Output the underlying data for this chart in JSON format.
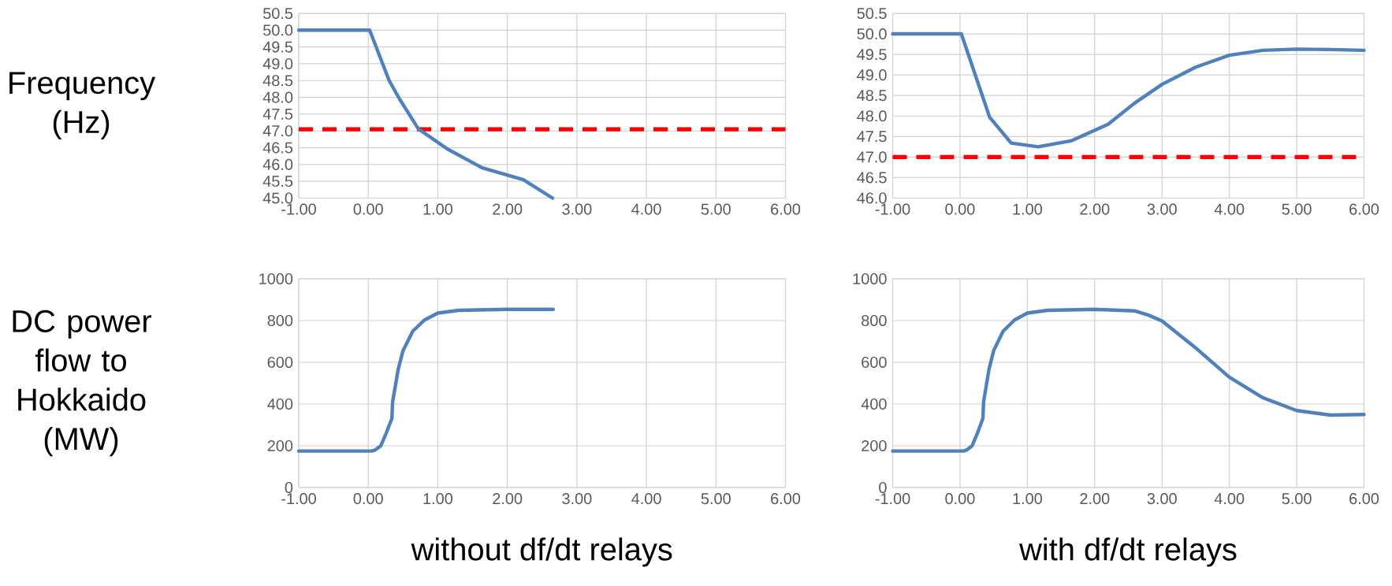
{
  "chart_data": [
    {
      "type": "line",
      "ylabel": "Frequency (Hz)",
      "xlim": [
        -1,
        6
      ],
      "ylim": [
        45,
        50.5
      ],
      "xticks": [
        {
          "value": -1,
          "label": "-1.00"
        },
        {
          "value": 0,
          "label": "0.00"
        },
        {
          "value": 1,
          "label": "1.00"
        },
        {
          "value": 2,
          "label": "2.00"
        },
        {
          "value": 3,
          "label": "3.00"
        },
        {
          "value": 4,
          "label": "4.00"
        },
        {
          "value": 5,
          "label": "5.00"
        },
        {
          "value": 6,
          "label": "6.00"
        }
      ],
      "yticks": [
        {
          "value": 45,
          "label": "45.0"
        },
        {
          "value": 45.5,
          "label": "45.5"
        },
        {
          "value": 46,
          "label": "46.0"
        },
        {
          "value": 46.5,
          "label": "46.5"
        },
        {
          "value": 47,
          "label": "47.0"
        },
        {
          "value": 47.5,
          "label": "47.5"
        },
        {
          "value": 48,
          "label": "48.0"
        },
        {
          "value": 48.5,
          "label": "48.5"
        },
        {
          "value": 49,
          "label": "49.0"
        },
        {
          "value": 49.5,
          "label": "49.5"
        },
        {
          "value": 50,
          "label": "50.0"
        },
        {
          "value": 50.5,
          "label": "50.5"
        }
      ],
      "grid": true,
      "marker": "none",
      "line_style": "solid",
      "ref_lines": [
        {
          "axis": "y",
          "value": 47.05,
          "color": "#ff0000",
          "line_style": "dashed"
        }
      ],
      "x": [
        -1,
        0.02,
        0.3,
        0.45,
        0.72,
        1.14,
        1.64,
        2.23,
        2.65
      ],
      "series": [
        {
          "color": "#4f81bd",
          "values": [
            50,
            50,
            48.5,
            47.95,
            47.06,
            46.46,
            45.9,
            45.55,
            45.0
          ]
        }
      ]
    },
    {
      "type": "line",
      "xlim": [
        -1,
        6
      ],
      "ylim": [
        46,
        50.5
      ],
      "xticks": [
        {
          "value": -1,
          "label": "-1.00"
        },
        {
          "value": 0,
          "label": "0.00"
        },
        {
          "value": 1,
          "label": "1.00"
        },
        {
          "value": 2,
          "label": "2.00"
        },
        {
          "value": 3,
          "label": "3.00"
        },
        {
          "value": 4,
          "label": "4.00"
        },
        {
          "value": 5,
          "label": "5.00"
        },
        {
          "value": 6,
          "label": "6.00"
        }
      ],
      "yticks": [
        {
          "value": 46,
          "label": "46.0"
        },
        {
          "value": 46.5,
          "label": "46.5"
        },
        {
          "value": 47,
          "label": "47.0"
        },
        {
          "value": 47.5,
          "label": "47.5"
        },
        {
          "value": 48,
          "label": "48.0"
        },
        {
          "value": 48.5,
          "label": "48.5"
        },
        {
          "value": 49,
          "label": "49.0"
        },
        {
          "value": 49.5,
          "label": "49.5"
        },
        {
          "value": 50,
          "label": "50.0"
        },
        {
          "value": 50.5,
          "label": "50.5"
        }
      ],
      "grid": true,
      "marker": "none",
      "line_style": "solid",
      "ref_lines": [
        {
          "axis": "y",
          "value": 47,
          "color": "#ff0000",
          "line_style": "dashed"
        }
      ],
      "x": [
        -1,
        0.02,
        0.44,
        0.76,
        1.16,
        1.66,
        2.2,
        2.59,
        3.0,
        3.5,
        4.0,
        4.5,
        5.0,
        5.5,
        6.0
      ],
      "series": [
        {
          "color": "#4f81bd",
          "values": [
            50,
            50,
            47.97,
            47.34,
            47.25,
            47.4,
            47.8,
            48.31,
            48.77,
            49.19,
            49.48,
            49.6,
            49.63,
            49.62,
            49.6
          ]
        }
      ]
    },
    {
      "type": "line",
      "ylabel": "DC power flow to Hokkaido (MW)",
      "xlabel": "without df/dt relays",
      "xlim": [
        -1,
        6
      ],
      "ylim": [
        0,
        1000
      ],
      "xticks": [
        {
          "value": -1,
          "label": "-1.00"
        },
        {
          "value": 0,
          "label": "0.00"
        },
        {
          "value": 1,
          "label": "1.00"
        },
        {
          "value": 2,
          "label": "2.00"
        },
        {
          "value": 3,
          "label": "3.00"
        },
        {
          "value": 4,
          "label": "4.00"
        },
        {
          "value": 5,
          "label": "5.00"
        },
        {
          "value": 6,
          "label": "6.00"
        }
      ],
      "yticks": [
        0,
        200,
        400,
        600,
        800,
        1000
      ],
      "grid": true,
      "marker": "none",
      "line_style": "solid",
      "x": [
        -1,
        0.05,
        0.1,
        0.18,
        0.26,
        0.34,
        0.35,
        0.43,
        0.5,
        0.64,
        0.81,
        1.0,
        1.3,
        2.0,
        2.66
      ],
      "series": [
        {
          "color": "#4f81bd",
          "values": [
            175,
            175,
            180,
            200,
            262,
            331,
            410,
            566,
            656,
            749,
            803,
            836,
            849,
            854,
            854
          ]
        }
      ]
    },
    {
      "type": "line",
      "xlabel": "with df/dt relays",
      "xlim": [
        -1,
        6
      ],
      "ylim": [
        0,
        1000
      ],
      "xticks": [
        {
          "value": -1,
          "label": "-1.00"
        },
        {
          "value": 0,
          "label": "0.00"
        },
        {
          "value": 1,
          "label": "1.00"
        },
        {
          "value": 2,
          "label": "2.00"
        },
        {
          "value": 3,
          "label": "3.00"
        },
        {
          "value": 4,
          "label": "4.00"
        },
        {
          "value": 5,
          "label": "5.00"
        },
        {
          "value": 6,
          "label": "6.00"
        }
      ],
      "yticks": [
        0,
        200,
        400,
        600,
        800,
        1000
      ],
      "grid": true,
      "marker": "none",
      "line_style": "solid",
      "x": [
        -1,
        0.05,
        0.1,
        0.18,
        0.26,
        0.34,
        0.35,
        0.43,
        0.5,
        0.64,
        0.81,
        1.0,
        1.3,
        2.0,
        2.6,
        2.8,
        3.0,
        3.5,
        4.0,
        4.5,
        5.0,
        5.5,
        6.0
      ],
      "series": [
        {
          "color": "#4f81bd",
          "values": [
            175,
            175,
            180,
            200,
            262,
            331,
            410,
            566,
            656,
            749,
            803,
            836,
            849,
            854,
            846,
            826,
            798,
            669,
            529,
            430,
            369,
            347,
            350
          ]
        }
      ]
    }
  ]
}
